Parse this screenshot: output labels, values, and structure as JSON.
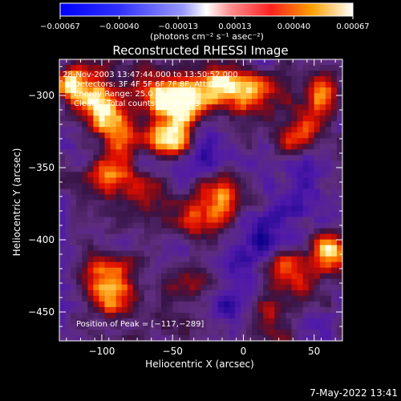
{
  "chart_data": {
    "type": "heatmap",
    "title": "Reconstructed RHESSI Image",
    "xlabel": "Heliocentric X (arcsec)",
    "ylabel": "Heliocentric Y (arcsec)",
    "xlim": [
      -130,
      70
    ],
    "ylim": [
      -470,
      -275
    ],
    "xticks": [
      -100,
      -50,
      0,
      50
    ],
    "xtick_labels": [
      "−100",
      "−50",
      "0",
      "50"
    ],
    "yticks": [
      -300,
      -350,
      -400,
      -450
    ],
    "ytick_labels": [
      "−300",
      "−350",
      "−400",
      "−450"
    ],
    "colorbar": {
      "range": [
        -0.00067,
        0.00067
      ],
      "ticks": [
        -0.00067,
        -0.0004,
        -0.00013,
        0.00013,
        0.0004,
        0.00067
      ],
      "tick_labels": [
        "−0.00067",
        "−0.00040",
        "−0.00013",
        "0.00013",
        "0.00040",
        "0.00067"
      ],
      "unit_label": "(photons cm⁻² s⁻¹ asec⁻²)"
    },
    "info_lines": [
      "28-Nov-2003 13:47:44.000 to 13:50:52.000",
      "Detectors: 3F 4F 5F 6F 7F 8F, Att 0",
      "Energy Range: 25.0 - 50.0 keV",
      "Clean    Total counts: 5.63E+03"
    ],
    "peak_label": "Position of Peak = [−117,−289]",
    "peak": [
      -117,
      -289
    ],
    "bright_features": [
      {
        "x": -118,
        "y": -292,
        "level": 0.85
      },
      {
        "x": -100,
        "y": -310,
        "level": 0.7
      },
      {
        "x": -85,
        "y": -330,
        "level": 0.65
      },
      {
        "x": -60,
        "y": -300,
        "level": 0.6
      },
      {
        "x": -55,
        "y": -330,
        "level": 0.9
      },
      {
        "x": -40,
        "y": -305,
        "level": 0.8
      },
      {
        "x": -15,
        "y": -292,
        "level": 0.75
      },
      {
        "x": 10,
        "y": -300,
        "level": 0.6
      },
      {
        "x": -95,
        "y": -355,
        "level": 0.55
      },
      {
        "x": -75,
        "y": -360,
        "level": 0.5
      },
      {
        "x": -30,
        "y": -385,
        "level": 0.55
      },
      {
        "x": -15,
        "y": -370,
        "level": 0.5
      },
      {
        "x": -100,
        "y": -425,
        "level": 0.6
      },
      {
        "x": -90,
        "y": -445,
        "level": 0.5
      },
      {
        "x": -40,
        "y": -430,
        "level": 0.5
      },
      {
        "x": 30,
        "y": -425,
        "level": 0.55
      },
      {
        "x": 20,
        "y": -455,
        "level": 0.5
      },
      {
        "x": 60,
        "y": -410,
        "level": 0.8
      },
      {
        "x": 55,
        "y": -300,
        "level": 0.55
      },
      {
        "x": 40,
        "y": -330,
        "level": 0.4
      }
    ],
    "dark_features": [
      {
        "x": -70,
        "y": -345,
        "level": 0.7
      },
      {
        "x": -20,
        "y": -345,
        "level": 0.6
      },
      {
        "x": 45,
        "y": -355,
        "level": 0.5
      },
      {
        "x": 10,
        "y": -400,
        "level": 0.5
      },
      {
        "x": -5,
        "y": -440,
        "level": 0.55
      },
      {
        "x": 35,
        "y": -385,
        "level": 0.45
      }
    ]
  },
  "footer": {
    "timestamp": "7-May-2022 13:41"
  },
  "colors": {
    "background": "#000000",
    "text": "#ffffff"
  }
}
